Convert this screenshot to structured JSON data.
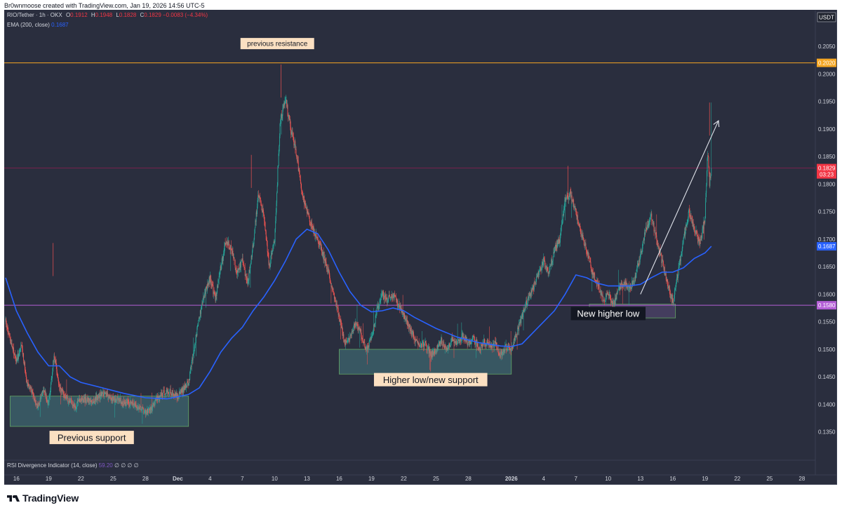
{
  "header": {
    "publisher_line": "Br0wnmoose created with TradingView.com, Jan 19, 2026 14:56 UTC-5"
  },
  "legend": {
    "symbol_text": "RIO/Tether · 1h · OKX",
    "open_key": "O",
    "open_value": "0.1912",
    "high_key": "H",
    "high_value": "0.1948",
    "low_key": "L",
    "low_value": "0.1828",
    "close_key": "C",
    "close_value": "0.1829",
    "change_text": "−0.0083 (−4.34%)",
    "ema_label": "EMA (200, close)",
    "ema_value": "0.1687",
    "rsi_label": "RSI Divergence Indicator (14, close)",
    "rsi_value": "59.20",
    "rsi_extra": "∅ ∅ ∅ ∅"
  },
  "axis": {
    "currency_badge": "USDT",
    "tick_color": "#d1d4dc"
  },
  "footer": {
    "brand_name": "TradingView"
  },
  "colors": {
    "background": "#2a2e3e",
    "bull": "#26a69a",
    "bear": "#ef5350",
    "ema": "#2962ff",
    "resistance_line": "#f5a623",
    "support_line": "#b45fd6",
    "last_price_line": "#c2185b",
    "support_box": "#4a8a8e",
    "support_box_border": "#6fbf6a",
    "purple_box": "#5a4a78",
    "annotation_bg": "#fbe0c2",
    "annotation_text": "#131722"
  },
  "chart_data": {
    "type": "candlestick",
    "title": "RIO/Tether · 1h · OKX",
    "ylabel": "USDT",
    "ylim": [
      0.13,
      0.2115
    ],
    "yticks": [
      0.135,
      0.14,
      0.145,
      0.15,
      0.155,
      0.16,
      0.165,
      0.17,
      0.175,
      0.18,
      0.185,
      0.19,
      0.195,
      0.2,
      0.205
    ],
    "ytick_labels": [
      "0.1350",
      "0.1400",
      "0.1450",
      "0.1500",
      "0.1550",
      "0.1600",
      "0.1650",
      "0.1700",
      "0.1750",
      "0.1800",
      "0.1850",
      "0.1900",
      "0.1950",
      "0.2000",
      "0.2050"
    ],
    "x_start": "2025-11-15T00:00",
    "x_end": "2026-01-29T06:00",
    "xticks": [
      {
        "t": "2025-11-16",
        "label": "16"
      },
      {
        "t": "2025-11-19",
        "label": "19"
      },
      {
        "t": "2025-11-22",
        "label": "22"
      },
      {
        "t": "2025-11-25",
        "label": "25"
      },
      {
        "t": "2025-11-28",
        "label": "28"
      },
      {
        "t": "2025-12-01",
        "label": "Dec"
      },
      {
        "t": "2025-12-04",
        "label": "4"
      },
      {
        "t": "2025-12-07",
        "label": "7"
      },
      {
        "t": "2025-12-10",
        "label": "10"
      },
      {
        "t": "2025-12-13",
        "label": "13"
      },
      {
        "t": "2025-12-16",
        "label": "16"
      },
      {
        "t": "2025-12-19",
        "label": "19"
      },
      {
        "t": "2025-12-22",
        "label": "22"
      },
      {
        "t": "2025-12-25",
        "label": "25"
      },
      {
        "t": "2025-12-28",
        "label": "28"
      },
      {
        "t": "2026-01-01",
        "label": "2026"
      },
      {
        "t": "2026-01-04",
        "label": "4"
      },
      {
        "t": "2026-01-07",
        "label": "7"
      },
      {
        "t": "2026-01-10",
        "label": "10"
      },
      {
        "t": "2026-01-13",
        "label": "13"
      },
      {
        "t": "2026-01-16",
        "label": "16"
      },
      {
        "t": "2026-01-19",
        "label": "19"
      },
      {
        "t": "2026-01-22",
        "label": "22"
      },
      {
        "t": "2026-01-25",
        "label": "25"
      },
      {
        "t": "2026-01-28",
        "label": "28"
      }
    ],
    "price_path": [
      [
        "2025-11-15T00:00",
        0.155
      ],
      [
        "2025-11-15T12:00",
        0.151
      ],
      [
        "2025-11-16T00:00",
        0.148
      ],
      [
        "2025-11-16T12:00",
        0.1505
      ],
      [
        "2025-11-17T00:00",
        0.144
      ],
      [
        "2025-11-17T12:00",
        0.142
      ],
      [
        "2025-11-18T00:00",
        0.1395
      ],
      [
        "2025-11-18T12:00",
        0.143
      ],
      [
        "2025-11-19T00:00",
        0.14
      ],
      [
        "2025-11-19T12:00",
        0.149
      ],
      [
        "2025-11-20T00:00",
        0.143
      ],
      [
        "2025-11-20T12:00",
        0.1415
      ],
      [
        "2025-11-21T00:00",
        0.1405
      ],
      [
        "2025-11-21T12:00",
        0.1395
      ],
      [
        "2025-11-22T00:00",
        0.141
      ],
      [
        "2025-11-23T00:00",
        0.1405
      ],
      [
        "2025-11-24T00:00",
        0.142
      ],
      [
        "2025-11-25T00:00",
        0.141
      ],
      [
        "2025-11-26T00:00",
        0.1405
      ],
      [
        "2025-11-27T00:00",
        0.14
      ],
      [
        "2025-11-28T00:00",
        0.1385
      ],
      [
        "2025-11-28T12:00",
        0.139
      ],
      [
        "2025-11-29T00:00",
        0.141
      ],
      [
        "2025-11-30T00:00",
        0.1425
      ],
      [
        "2025-12-01T00:00",
        0.1415
      ],
      [
        "2025-12-02T00:00",
        0.144
      ],
      [
        "2025-12-02T12:00",
        0.15
      ],
      [
        "2025-12-03T00:00",
        0.156
      ],
      [
        "2025-12-03T12:00",
        0.16
      ],
      [
        "2025-12-04T00:00",
        0.163
      ],
      [
        "2025-12-04T12:00",
        0.159
      ],
      [
        "2025-12-05T00:00",
        0.165
      ],
      [
        "2025-12-05T12:00",
        0.17
      ],
      [
        "2025-12-06T00:00",
        0.168
      ],
      [
        "2025-12-06T12:00",
        0.164
      ],
      [
        "2025-12-07T00:00",
        0.166
      ],
      [
        "2025-12-07T12:00",
        0.162
      ],
      [
        "2025-12-08T00:00",
        0.169
      ],
      [
        "2025-12-08T12:00",
        0.178
      ],
      [
        "2025-12-09T00:00",
        0.174
      ],
      [
        "2025-12-09T12:00",
        0.165
      ],
      [
        "2025-12-10T00:00",
        0.17
      ],
      [
        "2025-12-10T12:00",
        0.191
      ],
      [
        "2025-12-11T00:00",
        0.196
      ],
      [
        "2025-12-11T12:00",
        0.19
      ],
      [
        "2025-12-12T00:00",
        0.186
      ],
      [
        "2025-12-12T12:00",
        0.179
      ],
      [
        "2025-12-13T00:00",
        0.175
      ],
      [
        "2025-12-13T12:00",
        0.172
      ],
      [
        "2025-12-14T00:00",
        0.17
      ],
      [
        "2025-12-14T12:00",
        0.167
      ],
      [
        "2025-12-15T00:00",
        0.164
      ],
      [
        "2025-12-15T12:00",
        0.16
      ],
      [
        "2025-12-16T00:00",
        0.156
      ],
      [
        "2025-12-16T12:00",
        0.151
      ],
      [
        "2025-12-17T00:00",
        0.152
      ],
      [
        "2025-12-17T12:00",
        0.155
      ],
      [
        "2025-12-18T00:00",
        0.153
      ],
      [
        "2025-12-18T12:00",
        0.15
      ],
      [
        "2025-12-19T00:00",
        0.152
      ],
      [
        "2025-12-19T12:00",
        0.157
      ],
      [
        "2025-12-20T00:00",
        0.16
      ],
      [
        "2025-12-20T12:00",
        0.159
      ],
      [
        "2025-12-21T00:00",
        0.16
      ],
      [
        "2025-12-21T12:00",
        0.158
      ],
      [
        "2025-12-22T00:00",
        0.156
      ],
      [
        "2025-12-22T12:00",
        0.154
      ],
      [
        "2025-12-23T00:00",
        0.152
      ],
      [
        "2025-12-23T12:00",
        0.1505
      ],
      [
        "2025-12-24T00:00",
        0.151
      ],
      [
        "2025-12-24T12:00",
        0.149
      ],
      [
        "2025-12-25T00:00",
        0.15
      ],
      [
        "2025-12-25T12:00",
        0.1515
      ],
      [
        "2025-12-26T00:00",
        0.15
      ],
      [
        "2025-12-26T12:00",
        0.152
      ],
      [
        "2025-12-27T00:00",
        0.151
      ],
      [
        "2025-12-27T12:00",
        0.1525
      ],
      [
        "2025-12-28T00:00",
        0.151
      ],
      [
        "2025-12-28T12:00",
        0.152
      ],
      [
        "2025-12-29T00:00",
        0.15
      ],
      [
        "2025-12-29T12:00",
        0.1515
      ],
      [
        "2025-12-30T00:00",
        0.1505
      ],
      [
        "2025-12-30T12:00",
        0.151
      ],
      [
        "2025-12-31T00:00",
        0.149
      ],
      [
        "2025-12-31T12:00",
        0.1505
      ],
      [
        "2026-01-01T00:00",
        0.15
      ],
      [
        "2026-01-01T12:00",
        0.153
      ],
      [
        "2026-01-02T00:00",
        0.156
      ],
      [
        "2026-01-02T12:00",
        0.159
      ],
      [
        "2026-01-03T00:00",
        0.161
      ],
      [
        "2026-01-03T12:00",
        0.164
      ],
      [
        "2026-01-04T00:00",
        0.166
      ],
      [
        "2026-01-04T12:00",
        0.164
      ],
      [
        "2026-01-05T00:00",
        0.168
      ],
      [
        "2026-01-05T12:00",
        0.17
      ],
      [
        "2026-01-06T00:00",
        0.177
      ],
      [
        "2026-01-06T12:00",
        0.178
      ],
      [
        "2026-01-07T00:00",
        0.175
      ],
      [
        "2026-01-07T12:00",
        0.171
      ],
      [
        "2026-01-08T00:00",
        0.168
      ],
      [
        "2026-01-08T12:00",
        0.164
      ],
      [
        "2026-01-09T00:00",
        0.162
      ],
      [
        "2026-01-09T12:00",
        0.159
      ],
      [
        "2026-01-10T00:00",
        0.16
      ],
      [
        "2026-01-10T12:00",
        0.158
      ],
      [
        "2026-01-11T00:00",
        0.161
      ],
      [
        "2026-01-11T12:00",
        0.162
      ],
      [
        "2026-01-12T00:00",
        0.161
      ],
      [
        "2026-01-12T12:00",
        0.163
      ],
      [
        "2026-01-13T00:00",
        0.167
      ],
      [
        "2026-01-13T12:00",
        0.172
      ],
      [
        "2026-01-14T00:00",
        0.174
      ],
      [
        "2026-01-14T12:00",
        0.17
      ],
      [
        "2026-01-15T00:00",
        0.166
      ],
      [
        "2026-01-15T12:00",
        0.162
      ],
      [
        "2026-01-16T00:00",
        0.1585
      ],
      [
        "2026-01-16T12:00",
        0.164
      ],
      [
        "2026-01-17T00:00",
        0.17
      ],
      [
        "2026-01-17T12:00",
        0.175
      ],
      [
        "2026-01-18T00:00",
        0.172
      ],
      [
        "2026-01-18T12:00",
        0.169
      ],
      [
        "2026-01-19T00:00",
        0.174
      ],
      [
        "2026-01-19T06:00",
        0.186
      ],
      [
        "2026-01-19T10:00",
        0.18
      ],
      [
        "2026-01-19T14:00",
        0.1829
      ]
    ],
    "ema_200": [
      [
        "2025-11-15T00:00",
        0.163
      ],
      [
        "2025-11-16T00:00",
        0.157
      ],
      [
        "2025-11-17T00:00",
        0.153
      ],
      [
        "2025-11-18T00:00",
        0.1495
      ],
      [
        "2025-11-19T00:00",
        0.147
      ],
      [
        "2025-11-20T00:00",
        0.147
      ],
      [
        "2025-11-21T00:00",
        0.145
      ],
      [
        "2025-11-22T00:00",
        0.144
      ],
      [
        "2025-11-24T00:00",
        0.143
      ],
      [
        "2025-11-26T00:00",
        0.142
      ],
      [
        "2025-11-28T00:00",
        0.1412
      ],
      [
        "2025-11-30T00:00",
        0.141
      ],
      [
        "2025-12-02T00:00",
        0.1418
      ],
      [
        "2025-12-03T00:00",
        0.143
      ],
      [
        "2025-12-04T00:00",
        0.146
      ],
      [
        "2025-12-05T00:00",
        0.1495
      ],
      [
        "2025-12-06T00:00",
        0.152
      ],
      [
        "2025-12-07T00:00",
        0.154
      ],
      [
        "2025-12-08T00:00",
        0.157
      ],
      [
        "2025-12-09T00:00",
        0.1595
      ],
      [
        "2025-12-10T00:00",
        0.1625
      ],
      [
        "2025-12-11T00:00",
        0.166
      ],
      [
        "2025-12-12T00:00",
        0.17
      ],
      [
        "2025-12-13T00:00",
        0.1718
      ],
      [
        "2025-12-14T00:00",
        0.171
      ],
      [
        "2025-12-15T00:00",
        0.168
      ],
      [
        "2025-12-16T00:00",
        0.164
      ],
      [
        "2025-12-17T00:00",
        0.1605
      ],
      [
        "2025-12-18T00:00",
        0.158
      ],
      [
        "2025-12-19T00:00",
        0.1568
      ],
      [
        "2025-12-20T00:00",
        0.157
      ],
      [
        "2025-12-21T00:00",
        0.1575
      ],
      [
        "2025-12-22T00:00",
        0.157
      ],
      [
        "2025-12-23T00:00",
        0.1558
      ],
      [
        "2025-12-25T00:00",
        0.1538
      ],
      [
        "2025-12-27T00:00",
        0.1522
      ],
      [
        "2025-12-29T00:00",
        0.1512
      ],
      [
        "2025-12-31T00:00",
        0.1506
      ],
      [
        "2026-01-01T00:00",
        0.1505
      ],
      [
        "2026-01-02T00:00",
        0.151
      ],
      [
        "2026-01-03T00:00",
        0.153
      ],
      [
        "2026-01-04T00:00",
        0.155
      ],
      [
        "2026-01-05T00:00",
        0.157
      ],
      [
        "2026-01-06T00:00",
        0.16
      ],
      [
        "2026-01-07T00:00",
        0.1635
      ],
      [
        "2026-01-08T00:00",
        0.163
      ],
      [
        "2026-01-09T00:00",
        0.162
      ],
      [
        "2026-01-10T00:00",
        0.1615
      ],
      [
        "2026-01-11T00:00",
        0.1615
      ],
      [
        "2026-01-12T00:00",
        0.1615
      ],
      [
        "2026-01-13T00:00",
        0.1618
      ],
      [
        "2026-01-14T00:00",
        0.163
      ],
      [
        "2026-01-15T00:00",
        0.164
      ],
      [
        "2026-01-16T00:00",
        0.164
      ],
      [
        "2026-01-17T00:00",
        0.1648
      ],
      [
        "2026-01-18T00:00",
        0.1665
      ],
      [
        "2026-01-19T00:00",
        0.1675
      ],
      [
        "2026-01-19T14:00",
        0.1687
      ]
    ],
    "horizontal_lines": [
      {
        "price": 0.202,
        "label": "0.2020",
        "color": "#f5a623"
      },
      {
        "price": 0.158,
        "label": "0.1580",
        "color": "#b45fd6"
      },
      {
        "price": 0.1829,
        "label": "0.1829",
        "extra": "03:23",
        "color": "#c2185b"
      }
    ],
    "ema_badge": {
      "price": 0.1687,
      "label": "0.1687"
    },
    "zones": [
      {
        "name": "previous-support-zone",
        "t0": "2025-11-15T10:00",
        "t1": "2025-12-02T00:00",
        "p0": 0.136,
        "p1": 0.1415
      },
      {
        "name": "higher-low-zone",
        "t0": "2025-12-16T00:00",
        "t1": "2026-01-01T00:00",
        "p0": 0.1455,
        "p1": 0.15
      },
      {
        "name": "new-higher-low-zone",
        "t0": "2026-01-08T06:00",
        "t1": "2026-01-16T06:00",
        "p0": 0.1557,
        "p1": 0.1582
      }
    ],
    "annotations": [
      {
        "text": "previous resistance",
        "t": "2025-12-10T06:00",
        "p": 0.2055
      },
      {
        "text": "Previous support",
        "t": "2025-11-23T00:00",
        "p": 0.134
      },
      {
        "text": "Higher low/new support",
        "t": "2025-12-24T12:00",
        "p": 0.1445
      },
      {
        "text": "New higher low",
        "t": "2026-01-10T00:00",
        "p": 0.1565
      }
    ],
    "trend_arrow": {
      "t0": "2026-01-13T00:00",
      "p0": 0.16,
      "t1": "2026-01-20T06:00",
      "p1": 0.1915
    }
  }
}
